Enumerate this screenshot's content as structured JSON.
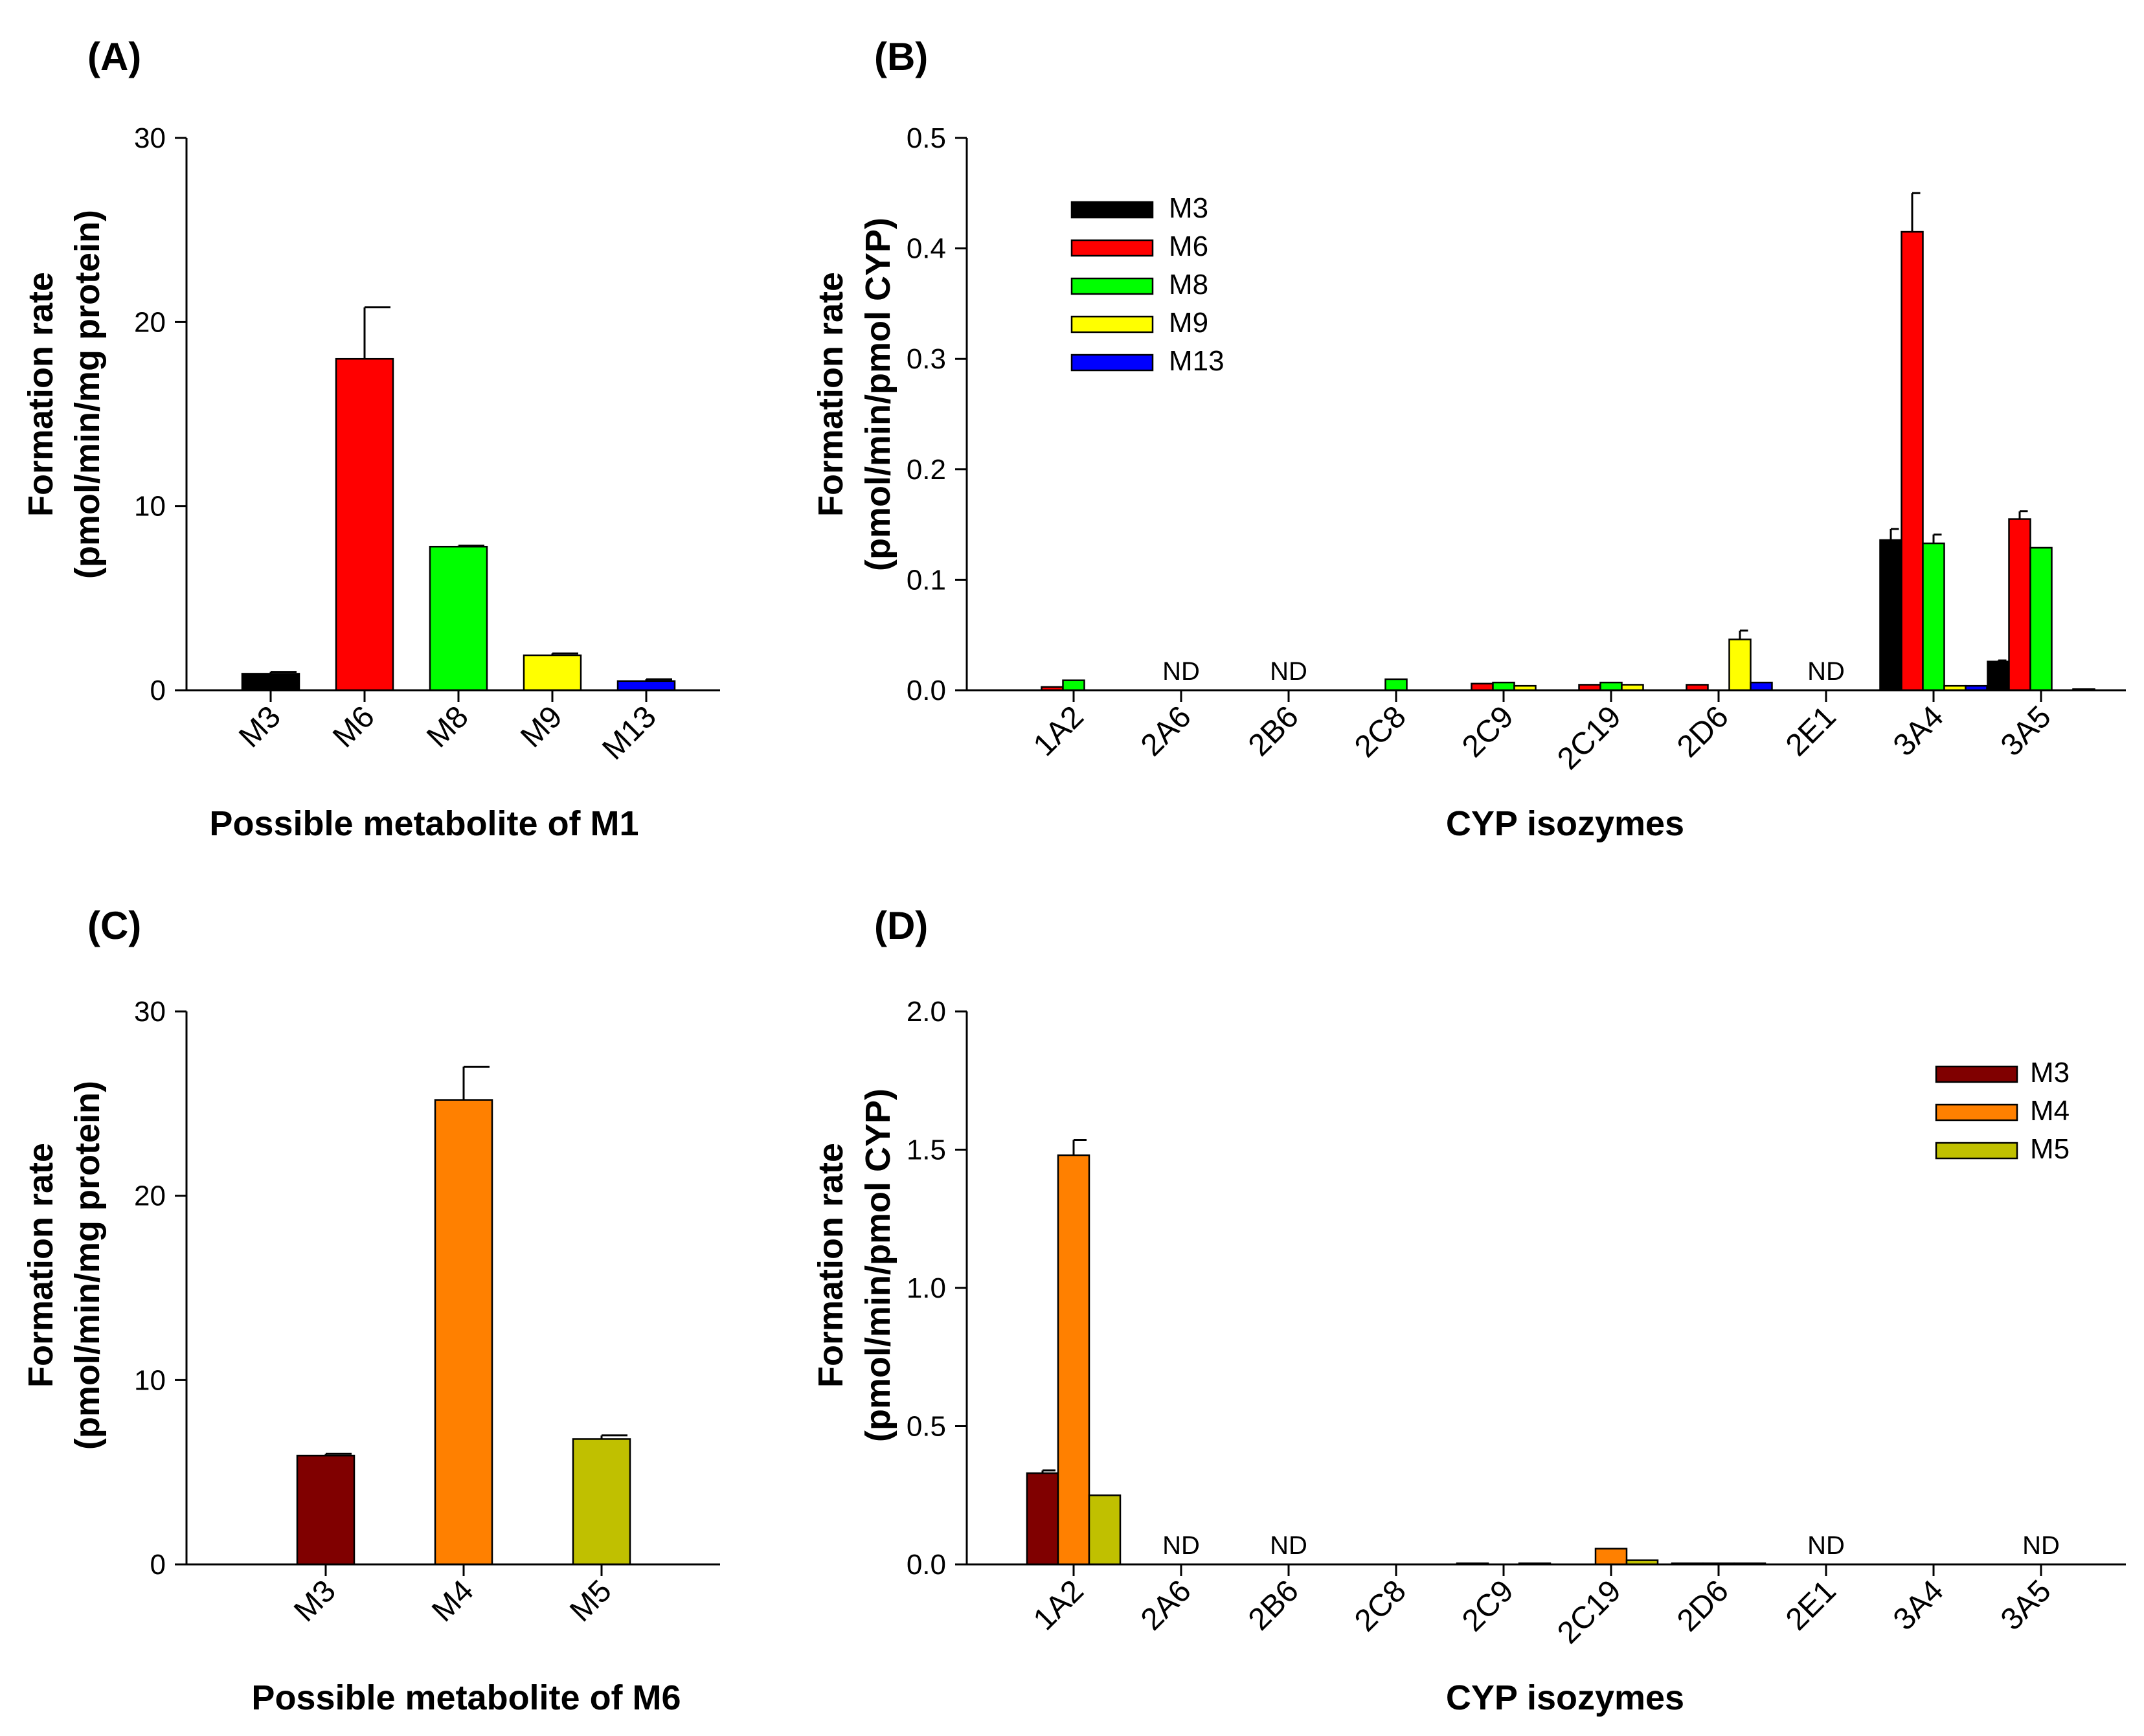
{
  "colors": {
    "M3_black": "#000000",
    "M6_red": "#ff0000",
    "M8_green": "#00ff00",
    "M9_yellow": "#ffff00",
    "M13_blue": "#0000ff",
    "M3_darkred": "#800000",
    "M4_orange": "#ff8000",
    "M5_olive": "#c0c000"
  },
  "chart_data": [
    {
      "type": "bar",
      "panel_label": "(A)",
      "categories": [
        "M3",
        "M6",
        "M8",
        "M9",
        "M13"
      ],
      "values": [
        0.9,
        18.0,
        7.8,
        1.9,
        0.5
      ],
      "errors": [
        0.1,
        2.8,
        0.05,
        0.1,
        0.1
      ],
      "colors": [
        "#000000",
        "#ff0000",
        "#00ff00",
        "#ffff00",
        "#0000ff"
      ],
      "xlabel": "Possible metabolite of M1",
      "ylabel_line1": "Formation rate",
      "ylabel_line2": "(pmol/min/mg protein)",
      "ylim": [
        0,
        30
      ],
      "yticks": [
        "0",
        "10",
        "20",
        "30"
      ],
      "grid": false
    },
    {
      "type": "bar",
      "panel_label": "(B)",
      "categories": [
        "1A2",
        "2A6",
        "2B6",
        "2C8",
        "2C9",
        "2C19",
        "2D6",
        "2E1",
        "3A4",
        "3A5"
      ],
      "series": [
        {
          "name": "M3",
          "color": "#000000",
          "values": [
            0,
            0,
            0,
            0,
            0,
            0,
            0,
            0,
            0.136,
            0.026
          ],
          "errors": [
            0,
            0,
            0,
            0,
            0,
            0,
            0,
            0,
            0.01,
            0.001
          ]
        },
        {
          "name": "M6",
          "color": "#ff0000",
          "values": [
            0.003,
            0,
            0,
            0,
            0.006,
            0.005,
            0.005,
            0,
            0.415,
            0.155
          ],
          "errors": [
            0,
            0,
            0,
            0,
            0,
            0,
            0,
            0,
            0.035,
            0.007
          ]
        },
        {
          "name": "M8",
          "color": "#00ff00",
          "values": [
            0.009,
            0,
            0,
            0.01,
            0.007,
            0.007,
            0,
            0,
            0.133,
            0.129
          ],
          "errors": [
            0,
            0,
            0,
            0,
            0,
            0,
            0,
            0,
            0.008,
            0
          ]
        },
        {
          "name": "M9",
          "color": "#ffff00",
          "values": [
            0,
            0,
            0,
            0,
            0.004,
            0.005,
            0.046,
            0,
            0.004,
            0
          ],
          "errors": [
            0,
            0,
            0,
            0,
            0,
            0,
            0.008,
            0,
            0,
            0
          ]
        },
        {
          "name": "M13",
          "color": "#0000ff",
          "values": [
            0,
            0,
            0,
            0,
            0,
            0,
            0.007,
            0,
            0.004,
            0.001
          ],
          "errors": [
            0,
            0,
            0,
            0,
            0,
            0,
            0,
            0,
            0,
            0
          ]
        }
      ],
      "annotations": [
        {
          "category": "2A6",
          "text": "ND"
        },
        {
          "category": "2B6",
          "text": "ND"
        },
        {
          "category": "2E1",
          "text": "ND"
        }
      ],
      "xlabel": "CYP isozymes",
      "ylabel_line1": "Formation rate",
      "ylabel_line2": "(pmol/min/pmol CYP)",
      "ylim": [
        0,
        0.5
      ],
      "yticks": [
        "0.0",
        "0.1",
        "0.2",
        "0.3",
        "0.4",
        "0.5"
      ],
      "legend_placement": "top-left",
      "grid": false
    },
    {
      "type": "bar",
      "panel_label": "(C)",
      "categories": [
        "M3",
        "M4",
        "M5"
      ],
      "values": [
        5.9,
        25.2,
        6.8
      ],
      "errors": [
        0.1,
        1.8,
        0.2
      ],
      "colors": [
        "#800000",
        "#ff8000",
        "#c0c000"
      ],
      "xlabel": "Possible metabolite of M6",
      "ylabel_line1": "Formation rate",
      "ylabel_line2": "(pmol/min/mg protein)",
      "ylim": [
        0,
        30
      ],
      "yticks": [
        "0",
        "10",
        "20",
        "30"
      ],
      "grid": false
    },
    {
      "type": "bar",
      "panel_label": "(D)",
      "categories": [
        "1A2",
        "2A6",
        "2B6",
        "2C8",
        "2C9",
        "2C19",
        "2D6",
        "2E1",
        "3A4",
        "3A5"
      ],
      "series": [
        {
          "name": "M3",
          "color": "#800000",
          "values": [
            0.33,
            0,
            0,
            0,
            0.004,
            0,
            0.004,
            0,
            0,
            0
          ],
          "errors": [
            0.01,
            0,
            0,
            0,
            0,
            0,
            0,
            0,
            0,
            0
          ]
        },
        {
          "name": "M4",
          "color": "#ff8000",
          "values": [
            1.48,
            0,
            0,
            0,
            0,
            0.057,
            0.004,
            0,
            0,
            0
          ],
          "errors": [
            0.055,
            0,
            0,
            0,
            0,
            0,
            0,
            0,
            0,
            0
          ]
        },
        {
          "name": "M5",
          "color": "#c0c000",
          "values": [
            0.25,
            0,
            0,
            0,
            0.004,
            0.015,
            0.004,
            0,
            0,
            0
          ],
          "errors": [
            0,
            0,
            0,
            0,
            0,
            0,
            0,
            0,
            0,
            0
          ]
        }
      ],
      "annotations": [
        {
          "category": "2A6",
          "text": "ND"
        },
        {
          "category": "2B6",
          "text": "ND"
        },
        {
          "category": "2E1",
          "text": "ND"
        },
        {
          "category": "3A5",
          "text": "ND"
        }
      ],
      "xlabel": "CYP isozymes",
      "ylabel_line1": "Formation rate",
      "ylabel_line2": "(pmol/min/pmol CYP)",
      "ylim": [
        0,
        2.0
      ],
      "yticks": [
        "0.0",
        "0.5",
        "1.0",
        "1.5",
        "2.0"
      ],
      "legend_placement": "top-right",
      "grid": false
    }
  ]
}
